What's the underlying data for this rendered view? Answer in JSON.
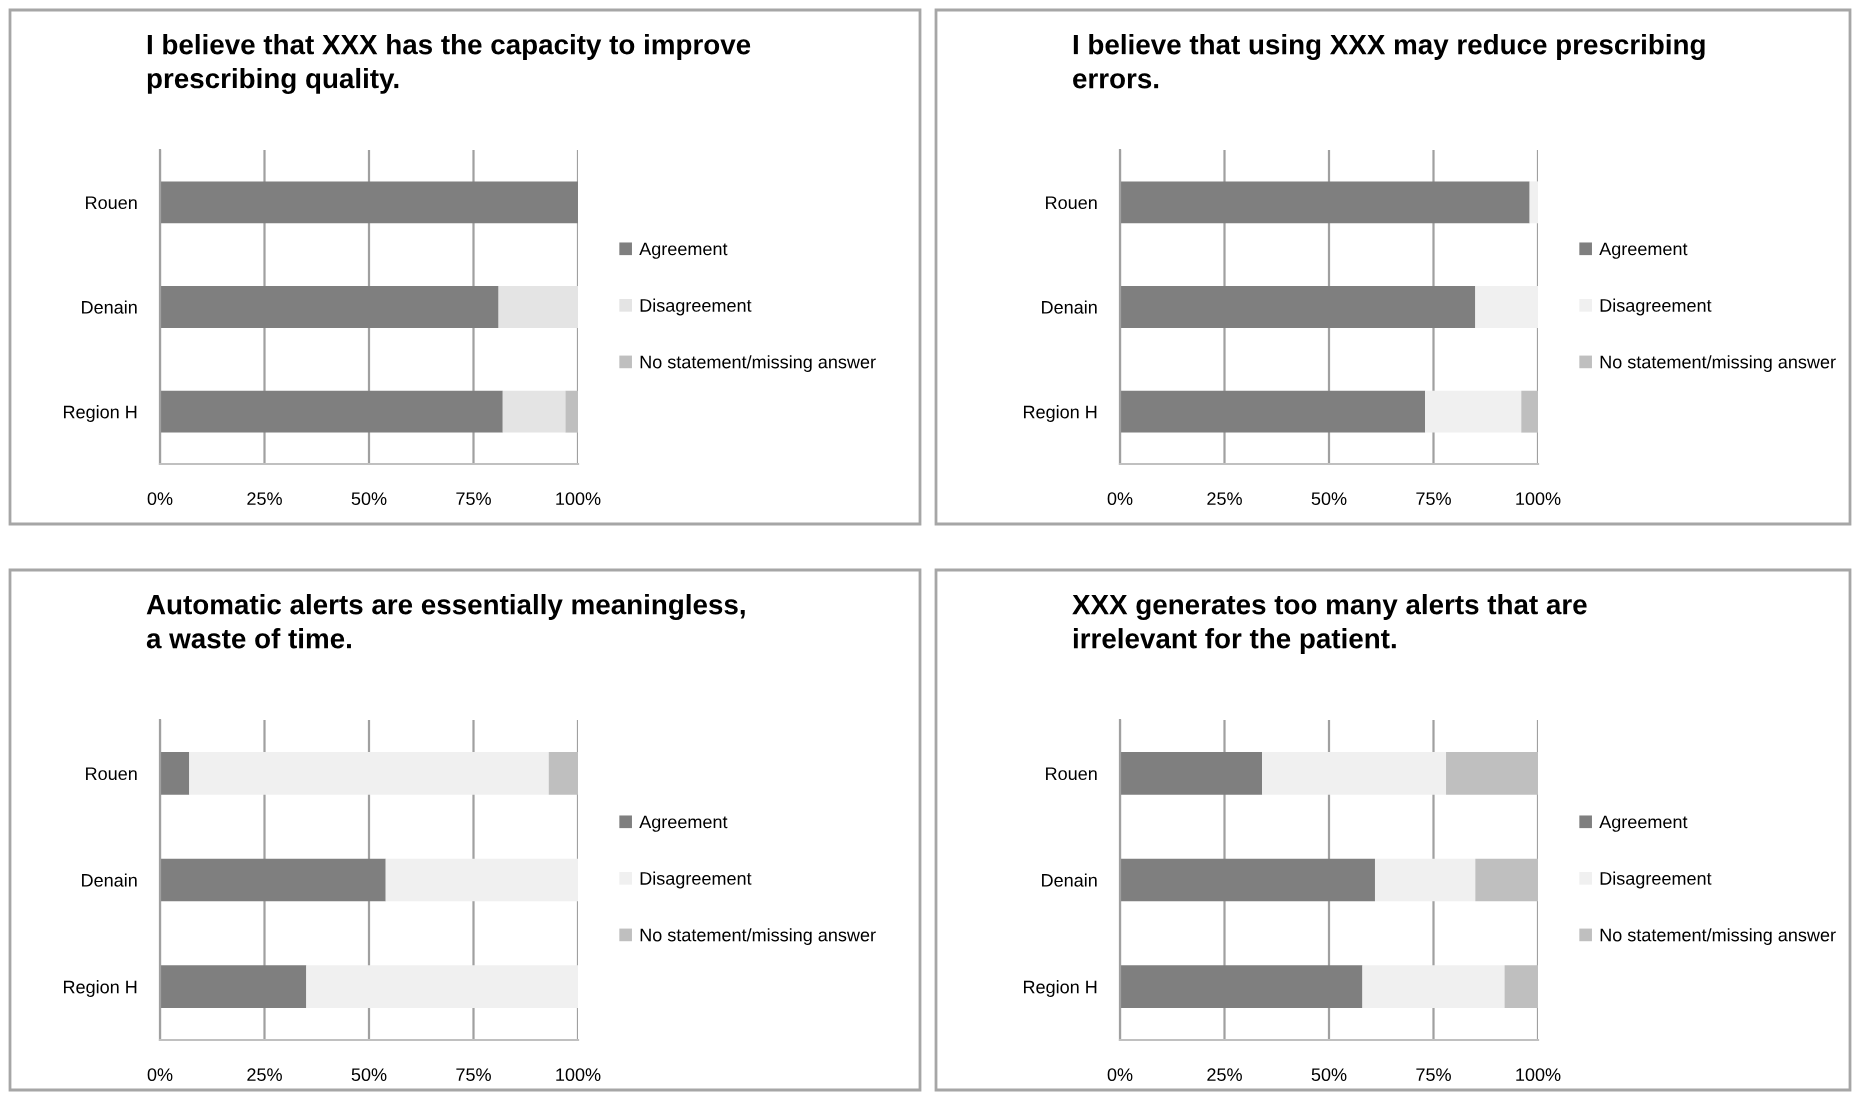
{
  "chart_data": [
    {
      "type": "bar",
      "title": "I believe that XXX has the capacity to improve\nprescribing quality.",
      "orientation": "horizontal",
      "stacked": true,
      "categories": [
        "Rouen",
        "Denain",
        "Region H"
      ],
      "series": [
        {
          "name": "Agreement",
          "color": "#7f7f7f",
          "values": [
            100,
            81,
            82
          ]
        },
        {
          "name": "Disagreement",
          "color": "#e4e4e4",
          "values": [
            0,
            19,
            15
          ]
        },
        {
          "name": "No statement/missing answer",
          "color": "#bfbfbf",
          "values": [
            0,
            0,
            3
          ]
        }
      ],
      "xlim": [
        0,
        100
      ],
      "xticks": [
        {
          "value": 0,
          "label": "0%"
        },
        {
          "value": 25,
          "label": "25%"
        },
        {
          "value": 50,
          "label": "50%"
        },
        {
          "value": 75,
          "label": "75%"
        },
        {
          "value": 100,
          "label": "100%"
        }
      ],
      "grid": "x",
      "legend": "right"
    },
    {
      "type": "bar",
      "title": "I believe that using XXX may reduce prescribing\nerrors.",
      "orientation": "horizontal",
      "stacked": true,
      "categories": [
        "Rouen",
        "Denain",
        "Region H"
      ],
      "series": [
        {
          "name": "Agreement",
          "color": "#7f7f7f",
          "values": [
            98,
            85,
            73
          ]
        },
        {
          "name": "Disagreement",
          "color": "#f0f0f0",
          "values": [
            2,
            15,
            23
          ]
        },
        {
          "name": "No statement/missing answer",
          "color": "#bfbfbf",
          "values": [
            0,
            0,
            4
          ]
        }
      ],
      "xlim": [
        0,
        100
      ],
      "xticks": [
        {
          "value": 0,
          "label": "0%"
        },
        {
          "value": 25,
          "label": "25%"
        },
        {
          "value": 50,
          "label": "50%"
        },
        {
          "value": 75,
          "label": "75%"
        },
        {
          "value": 100,
          "label": "100%"
        }
      ],
      "grid": "x",
      "legend": "right"
    },
    {
      "type": "bar",
      "title": "Automatic alerts are essentially meaningless,\na waste of time.",
      "orientation": "horizontal",
      "stacked": true,
      "categories": [
        "Rouen",
        "Denain",
        "Region H"
      ],
      "series": [
        {
          "name": "Agreement",
          "color": "#7f7f7f",
          "values": [
            7,
            54,
            35
          ]
        },
        {
          "name": "Disagreement",
          "color": "#f0f0f0",
          "values": [
            86,
            46,
            65
          ]
        },
        {
          "name": "No statement/missing answer",
          "color": "#bfbfbf",
          "values": [
            7,
            0,
            0
          ]
        }
      ],
      "xlim": [
        0,
        100
      ],
      "xticks": [
        {
          "value": 0,
          "label": "0%"
        },
        {
          "value": 25,
          "label": "25%"
        },
        {
          "value": 50,
          "label": "50%"
        },
        {
          "value": 75,
          "label": "75%"
        },
        {
          "value": 100,
          "label": "100%"
        }
      ],
      "grid": "x",
      "legend": "right"
    },
    {
      "type": "bar",
      "title": "XXX generates too many alerts that are\nirrelevant for the patient.",
      "orientation": "horizontal",
      "stacked": true,
      "categories": [
        "Rouen",
        "Denain",
        "Region H"
      ],
      "series": [
        {
          "name": "Agreement",
          "color": "#7f7f7f",
          "values": [
            34,
            61,
            58
          ]
        },
        {
          "name": "Disagreement",
          "color": "#f0f0f0",
          "values": [
            44,
            24,
            34
          ]
        },
        {
          "name": "No statement/missing answer",
          "color": "#bfbfbf",
          "values": [
            22,
            15,
            8
          ]
        }
      ],
      "xlim": [
        0,
        100
      ],
      "xticks": [
        {
          "value": 0,
          "label": "0%"
        },
        {
          "value": 25,
          "label": "25%"
        },
        {
          "value": 50,
          "label": "50%"
        },
        {
          "value": 75,
          "label": "75%"
        },
        {
          "value": 100,
          "label": "100%"
        }
      ],
      "grid": "x",
      "legend": "right"
    }
  ]
}
